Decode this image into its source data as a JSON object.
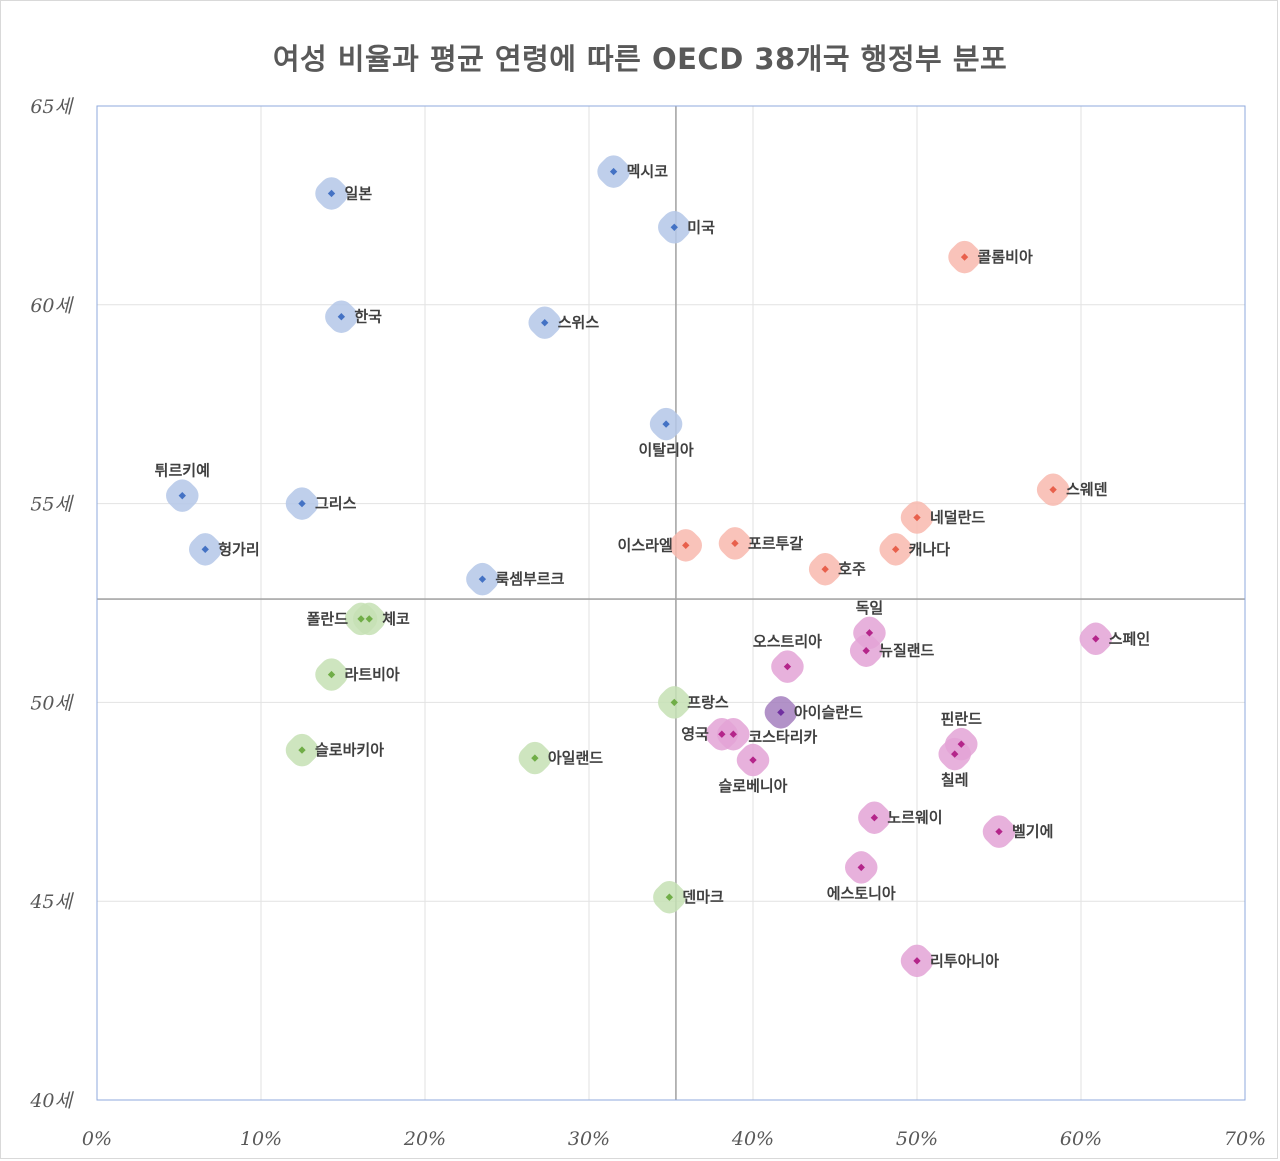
{
  "chart_data": {
    "type": "scatter",
    "title": "여성 비율과 평균 연령에 따른 OECD 38개국 행정부 분포",
    "xlabel": "",
    "ylabel": "",
    "xlim": [
      0,
      70
    ],
    "ylim": [
      40,
      65
    ],
    "x_ticks": [
      {
        "value": 0,
        "label": "0%"
      },
      {
        "value": 10,
        "label": "10%"
      },
      {
        "value": 20,
        "label": "20%"
      },
      {
        "value": 30,
        "label": "30%"
      },
      {
        "value": 40,
        "label": "40%"
      },
      {
        "value": 50,
        "label": "50%"
      },
      {
        "value": 60,
        "label": "60%"
      },
      {
        "value": 70,
        "label": "70%"
      }
    ],
    "y_ticks": [
      {
        "value": 40,
        "label": "40세"
      },
      {
        "value": 45,
        "label": "45세"
      },
      {
        "value": 50,
        "label": "50세"
      },
      {
        "value": 55,
        "label": "55세"
      },
      {
        "value": 60,
        "label": "60세"
      },
      {
        "value": 65,
        "label": "65세"
      }
    ],
    "grid": true,
    "reference_lines": {
      "x": 35.3,
      "y": 52.6
    },
    "colors": {
      "blue": "#4472c4",
      "blue_halo": "#b4c7e7",
      "red": "#e8604c",
      "red_halo": "#f8b9ae",
      "green": "#70ad47",
      "green_halo": "#c5e0b4",
      "magenta": "#b4258a",
      "magenta_halo": "#e3a3d6",
      "purple": "#7030a0",
      "purple_halo": "#a47fbe"
    },
    "points": [
      {
        "label": "멕시코",
        "x": 31.5,
        "y": 63.35,
        "color": "blue",
        "label_pos": "right"
      },
      {
        "label": "일본",
        "x": 14.3,
        "y": 62.8,
        "color": "blue",
        "label_pos": "right"
      },
      {
        "label": "미국",
        "x": 35.2,
        "y": 61.95,
        "color": "blue",
        "label_pos": "right"
      },
      {
        "label": "한국",
        "x": 14.9,
        "y": 59.7,
        "color": "blue",
        "label_pos": "right"
      },
      {
        "label": "스위스",
        "x": 27.3,
        "y": 59.55,
        "color": "blue",
        "label_pos": "right"
      },
      {
        "label": "이탈리아",
        "x": 34.7,
        "y": 57.0,
        "color": "blue",
        "label_pos": "below"
      },
      {
        "label": "튀르키예",
        "x": 5.2,
        "y": 55.2,
        "color": "blue",
        "label_pos": "above"
      },
      {
        "label": "그리스",
        "x": 12.5,
        "y": 55.0,
        "color": "blue",
        "label_pos": "right"
      },
      {
        "label": "헝가리",
        "x": 6.6,
        "y": 53.85,
        "color": "blue",
        "label_pos": "right"
      },
      {
        "label": "룩셈부르크",
        "x": 23.5,
        "y": 53.1,
        "color": "blue",
        "label_pos": "right"
      },
      {
        "label": "콜롬비아",
        "x": 52.9,
        "y": 61.2,
        "color": "red",
        "label_pos": "right"
      },
      {
        "label": "스웨덴",
        "x": 58.3,
        "y": 55.35,
        "color": "red",
        "label_pos": "right"
      },
      {
        "label": "네덜란드",
        "x": 50.0,
        "y": 54.65,
        "color": "red",
        "label_pos": "right"
      },
      {
        "label": "캐나다",
        "x": 48.7,
        "y": 53.85,
        "color": "red",
        "label_pos": "right"
      },
      {
        "label": "포르투갈",
        "x": 38.9,
        "y": 54.0,
        "color": "red",
        "label_pos": "right"
      },
      {
        "label": "이스라엘",
        "x": 35.9,
        "y": 53.95,
        "color": "red",
        "label_pos": "left"
      },
      {
        "label": "호주",
        "x": 44.4,
        "y": 53.35,
        "color": "red",
        "label_pos": "right"
      },
      {
        "label": "폴란드",
        "x": 16.1,
        "y": 52.1,
        "color": "green",
        "label_pos": "left"
      },
      {
        "label": "체코",
        "x": 16.6,
        "y": 52.1,
        "color": "green",
        "label_pos": "right"
      },
      {
        "label": "라트비아",
        "x": 14.3,
        "y": 50.7,
        "color": "green",
        "label_pos": "right"
      },
      {
        "label": "프랑스",
        "x": 35.2,
        "y": 50.0,
        "color": "green",
        "label_pos": "right"
      },
      {
        "label": "슬로바키아",
        "x": 12.5,
        "y": 48.8,
        "color": "green",
        "label_pos": "right"
      },
      {
        "label": "아일랜드",
        "x": 26.7,
        "y": 48.6,
        "color": "green",
        "label_pos": "right"
      },
      {
        "label": "덴마크",
        "x": 34.9,
        "y": 45.1,
        "color": "green",
        "label_pos": "right"
      },
      {
        "label": "스페인",
        "x": 60.9,
        "y": 51.6,
        "color": "magenta",
        "label_pos": "right"
      },
      {
        "label": "독일",
        "x": 47.1,
        "y": 51.75,
        "color": "magenta",
        "label_pos": "above"
      },
      {
        "label": "뉴질랜드",
        "x": 46.9,
        "y": 51.3,
        "color": "magenta",
        "label_pos": "right"
      },
      {
        "label": "오스트리아",
        "x": 42.1,
        "y": 50.9,
        "color": "magenta",
        "label_pos": "above"
      },
      {
        "label": "아이슬란드",
        "x": 41.7,
        "y": 49.75,
        "color": "purple",
        "label_pos": "right"
      },
      {
        "label": "영국",
        "x": 38.1,
        "y": 49.2,
        "color": "magenta",
        "label_pos": "left"
      },
      {
        "label": "코스타리카",
        "x": 38.8,
        "y": 49.2,
        "color": "magenta",
        "label_pos": "right_below"
      },
      {
        "label": "슬로베니아",
        "x": 40.0,
        "y": 48.55,
        "color": "magenta",
        "label_pos": "below"
      },
      {
        "label": "핀란드",
        "x": 52.7,
        "y": 48.95,
        "color": "magenta",
        "label_pos": "above"
      },
      {
        "label": "칠레",
        "x": 52.3,
        "y": 48.7,
        "color": "magenta",
        "label_pos": "below"
      },
      {
        "label": "노르웨이",
        "x": 47.4,
        "y": 47.1,
        "color": "magenta",
        "label_pos": "right"
      },
      {
        "label": "벨기에",
        "x": 55.0,
        "y": 46.75,
        "color": "magenta",
        "label_pos": "right"
      },
      {
        "label": "에스토니아",
        "x": 46.6,
        "y": 45.85,
        "color": "magenta",
        "label_pos": "below"
      },
      {
        "label": "리투아니아",
        "x": 50.0,
        "y": 43.5,
        "color": "magenta",
        "label_pos": "right"
      }
    ]
  }
}
